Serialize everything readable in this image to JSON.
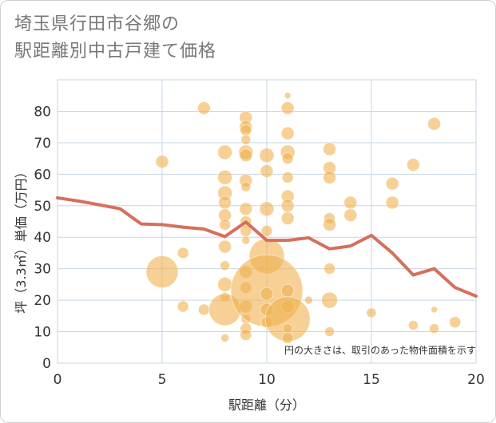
{
  "title_line1": "埼玉県行田市谷郷の",
  "title_line2": "駅距離別中古戸建て価格",
  "chart_data": {
    "type": "scatter",
    "xlabel": "駅距離（分）",
    "ylabel": "坪（3.3㎡）単価（万円）",
    "xlim": [
      0,
      20
    ],
    "ylim": [
      0,
      90
    ],
    "xticks": [
      0,
      5,
      10,
      15,
      20
    ],
    "yticks": [
      0,
      10,
      20,
      30,
      40,
      50,
      60,
      70,
      80
    ],
    "note": "円の大きさは、取引のあった物件面積を示す",
    "colors": {
      "bubble": "#f0b14f",
      "line": "#d4705d",
      "grid": "#c9d6e3"
    },
    "bubbles": [
      {
        "x": 5,
        "y": 64,
        "s": 8
      },
      {
        "x": 5,
        "y": 29,
        "s": 20
      },
      {
        "x": 6,
        "y": 35,
        "s": 7
      },
      {
        "x": 6,
        "y": 18,
        "s": 7
      },
      {
        "x": 7,
        "y": 81,
        "s": 8
      },
      {
        "x": 7,
        "y": 17,
        "s": 7
      },
      {
        "x": 8,
        "y": 67,
        "s": 9
      },
      {
        "x": 8,
        "y": 59,
        "s": 9
      },
      {
        "x": 8,
        "y": 54,
        "s": 9
      },
      {
        "x": 8,
        "y": 51,
        "s": 8
      },
      {
        "x": 8,
        "y": 47,
        "s": 8
      },
      {
        "x": 8,
        "y": 44,
        "s": 7
      },
      {
        "x": 8,
        "y": 37,
        "s": 8
      },
      {
        "x": 8,
        "y": 31,
        "s": 6
      },
      {
        "x": 8,
        "y": 25,
        "s": 9
      },
      {
        "x": 8,
        "y": 21,
        "s": 6
      },
      {
        "x": 8,
        "y": 17,
        "s": 20
      },
      {
        "x": 8,
        "y": 8,
        "s": 5
      },
      {
        "x": 9,
        "y": 78,
        "s": 8
      },
      {
        "x": 9,
        "y": 75,
        "s": 8
      },
      {
        "x": 9,
        "y": 74,
        "s": 7
      },
      {
        "x": 9,
        "y": 71,
        "s": 6
      },
      {
        "x": 9,
        "y": 67,
        "s": 9
      },
      {
        "x": 9,
        "y": 66,
        "s": 8
      },
      {
        "x": 9,
        "y": 58,
        "s": 8
      },
      {
        "x": 9,
        "y": 56,
        "s": 6
      },
      {
        "x": 9,
        "y": 49,
        "s": 8
      },
      {
        "x": 9,
        "y": 45,
        "s": 7
      },
      {
        "x": 9,
        "y": 42,
        "s": 7
      },
      {
        "x": 9,
        "y": 39,
        "s": 5
      },
      {
        "x": 9,
        "y": 29,
        "s": 8
      },
      {
        "x": 9,
        "y": 24,
        "s": 7
      },
      {
        "x": 9,
        "y": 18,
        "s": 8
      },
      {
        "x": 9,
        "y": 14,
        "s": 6
      },
      {
        "x": 9,
        "y": 11,
        "s": 7
      },
      {
        "x": 9,
        "y": 9,
        "s": 7
      },
      {
        "x": 10,
        "y": 66,
        "s": 9
      },
      {
        "x": 10,
        "y": 61,
        "s": 8
      },
      {
        "x": 10,
        "y": 49,
        "s": 9
      },
      {
        "x": 10,
        "y": 42,
        "s": 7
      },
      {
        "x": 10,
        "y": 34,
        "s": 22
      },
      {
        "x": 10,
        "y": 23,
        "s": 45
      },
      {
        "x": 10,
        "y": 22,
        "s": 8
      },
      {
        "x": 10,
        "y": 17,
        "s": 8
      },
      {
        "x": 10,
        "y": 13,
        "s": 7
      },
      {
        "x": 11,
        "y": 85,
        "s": 4
      },
      {
        "x": 11,
        "y": 81,
        "s": 8
      },
      {
        "x": 11,
        "y": 73,
        "s": 8
      },
      {
        "x": 11,
        "y": 67,
        "s": 9
      },
      {
        "x": 11,
        "y": 65,
        "s": 7
      },
      {
        "x": 11,
        "y": 59,
        "s": 7
      },
      {
        "x": 11,
        "y": 53,
        "s": 8
      },
      {
        "x": 11,
        "y": 50,
        "s": 8
      },
      {
        "x": 11,
        "y": 46,
        "s": 8
      },
      {
        "x": 11,
        "y": 23,
        "s": 8
      },
      {
        "x": 11,
        "y": 18,
        "s": 8
      },
      {
        "x": 11,
        "y": 14,
        "s": 28
      },
      {
        "x": 11,
        "y": 11,
        "s": 6
      },
      {
        "x": 11,
        "y": 8,
        "s": 7
      },
      {
        "x": 12,
        "y": 20,
        "s": 5
      },
      {
        "x": 13,
        "y": 68,
        "s": 8
      },
      {
        "x": 13,
        "y": 62,
        "s": 8
      },
      {
        "x": 13,
        "y": 59,
        "s": 8
      },
      {
        "x": 13,
        "y": 46,
        "s": 7
      },
      {
        "x": 13,
        "y": 44,
        "s": 8
      },
      {
        "x": 13,
        "y": 30,
        "s": 7
      },
      {
        "x": 13,
        "y": 20,
        "s": 10
      },
      {
        "x": 13,
        "y": 10,
        "s": 6
      },
      {
        "x": 14,
        "y": 51,
        "s": 8
      },
      {
        "x": 14,
        "y": 47,
        "s": 8
      },
      {
        "x": 15,
        "y": 16,
        "s": 6
      },
      {
        "x": 16,
        "y": 57,
        "s": 8
      },
      {
        "x": 16,
        "y": 51,
        "s": 8
      },
      {
        "x": 17,
        "y": 63,
        "s": 8
      },
      {
        "x": 17,
        "y": 12,
        "s": 6
      },
      {
        "x": 18,
        "y": 76,
        "s": 8
      },
      {
        "x": 18,
        "y": 17,
        "s": 4
      },
      {
        "x": 18,
        "y": 11,
        "s": 6
      },
      {
        "x": 19,
        "y": 13,
        "s": 7
      }
    ],
    "line": {
      "x": [
        0,
        1,
        2,
        3,
        4,
        5,
        6,
        7,
        8,
        9,
        10,
        11,
        12,
        13,
        14,
        15,
        16,
        17,
        18,
        19,
        20
      ],
      "y": [
        52.5,
        51.5,
        50.3,
        49,
        44.2,
        44,
        43.2,
        42.6,
        40.2,
        44.8,
        39,
        39,
        39.8,
        36.3,
        37.2,
        40.6,
        35,
        28,
        30,
        24,
        21.3
      ]
    }
  }
}
